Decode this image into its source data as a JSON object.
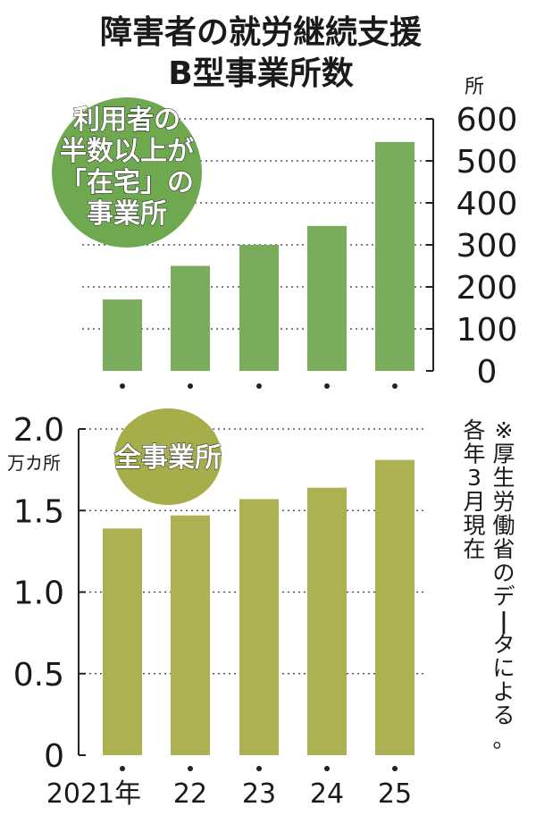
{
  "title": {
    "line1": "障害者の就労継続支援",
    "line2": "B型事業所数"
  },
  "note": [
    "※厚生労働省のデータによる。",
    "各年3月現在"
  ],
  "colors": {
    "top_bar": "#79ad5b",
    "top_badge": "#6ea84f",
    "bottom_bar": "#adb152",
    "bottom_badge": "#a7ad4a",
    "grid": "#333333"
  },
  "chart_data": [
    {
      "type": "bar",
      "badge": [
        "利用者の",
        "半数以上が",
        "「在宅」の",
        "事業所"
      ],
      "unit": "所",
      "categories": [
        "2021年",
        "22",
        "23",
        "24",
        "25"
      ],
      "values": [
        170,
        250,
        300,
        345,
        545
      ],
      "ylim": [
        0,
        600
      ],
      "yticks": [
        "0",
        "100",
        "200",
        "300",
        "400",
        "500",
        "600"
      ],
      "grid": true
    },
    {
      "type": "bar",
      "badge": [
        "全事業所"
      ],
      "unit": "万カ所",
      "categories": [
        "2021年",
        "22",
        "23",
        "24",
        "25"
      ],
      "values": [
        1.39,
        1.47,
        1.57,
        1.64,
        1.81
      ],
      "ylim": [
        0,
        2.0
      ],
      "yticks": [
        "0",
        "0.5",
        "1.0",
        "1.5",
        "2.0"
      ],
      "xtick_labels": [
        "2021年",
        "22",
        "23",
        "24",
        "25"
      ],
      "grid": true
    }
  ]
}
